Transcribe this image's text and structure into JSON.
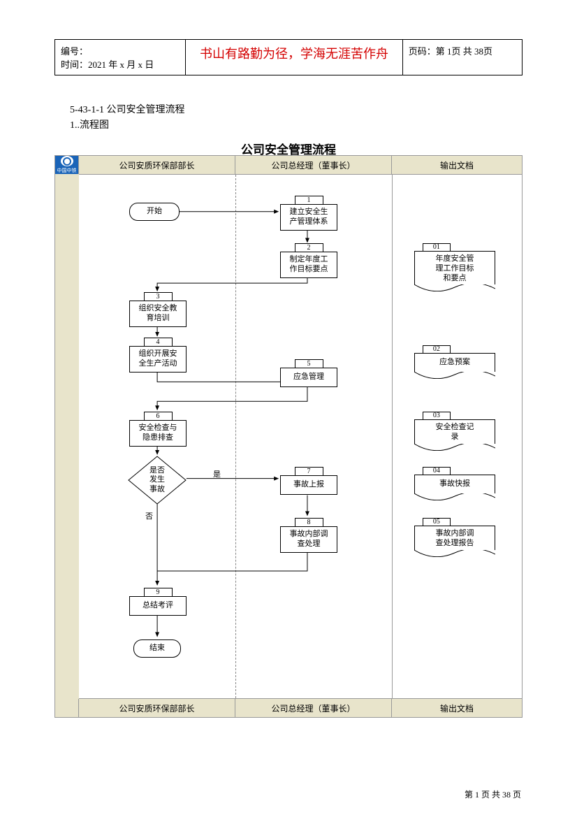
{
  "header": {
    "serial_label": "编号：",
    "time_label": "时间：2021 年 x 月 x 日",
    "motto": "书山有路勤为径，学海无涯苦作舟",
    "page_label": "页码：第 1页 共 38页"
  },
  "section": {
    "title": "5-43-1-1 公司安全管理流程",
    "sub": "1..流程图"
  },
  "diagram": {
    "title": "公司安全管理流程",
    "logo_text": "中国中铁",
    "lanes": {
      "col1_top": "公司安质环保部部长",
      "col2_top": "公司总经理（董事长）",
      "col3_top": "输出文档",
      "col1_bot": "公司安质环保部部长",
      "col2_bot": "公司总经理（董事长）",
      "col3_bot": "输出文档"
    },
    "nodes": {
      "start": "开始",
      "n1_num": "1",
      "n1": "建立安全生\n产管理体系",
      "n2_num": "2",
      "n2": "制定年度工\n作目标要点",
      "n3_num": "3",
      "n3": "组织安全教\n育培训",
      "n4_num": "4",
      "n4": "组织开展安\n全生产活动",
      "n5_num": "5",
      "n5": "应急管理",
      "n6_num": "6",
      "n6": "安全检查与\n隐患排查",
      "decision": "是否\n发生\n事故",
      "yes": "是",
      "no": "否",
      "n7_num": "7",
      "n7": "事故上报",
      "n8_num": "8",
      "n8": "事故内部调\n查处理",
      "n9_num": "9",
      "n9": "总结考评",
      "end": "结束"
    },
    "outputs": {
      "o1_num": "01",
      "o1": "年度安全管\n理工作目标\n和要点",
      "o2_num": "02",
      "o2": "应急预案",
      "o3_num": "03",
      "o3": "安全检查记\n录",
      "o4_num": "04",
      "o4": "事故快报",
      "o5_num": "05",
      "o5": "事故内部调\n查处理报告"
    },
    "colors": {
      "lane_bg": "#e8e4cb",
      "canvas_bg": "#ffffff",
      "border": "#999999",
      "node_border": "#000000",
      "motto": "#d40000",
      "logo_blue": "#1a64b8"
    }
  },
  "footer": {
    "page": "第 1 页 共 38 页"
  }
}
